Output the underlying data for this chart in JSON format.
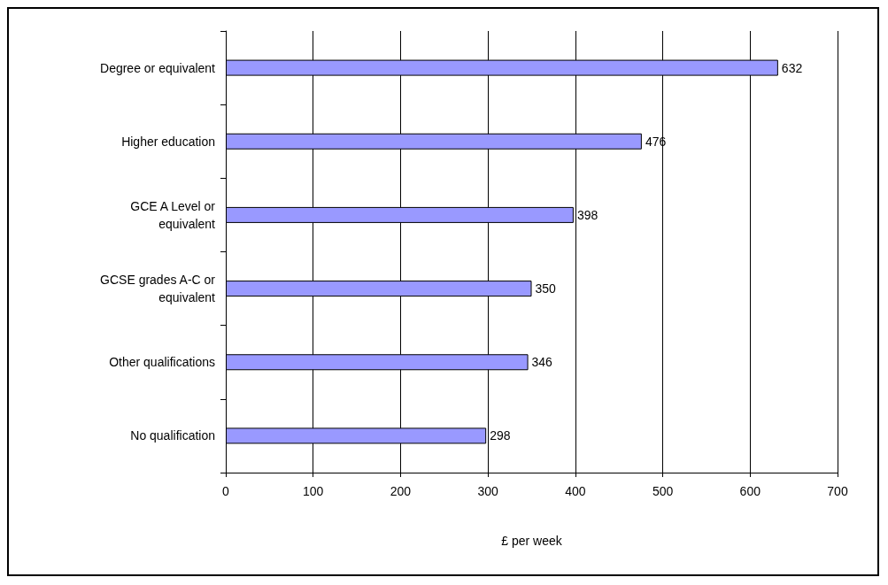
{
  "chart_data": {
    "type": "bar",
    "orientation": "horizontal",
    "xlabel": "£ per week",
    "categories": [
      "Degree or equivalent",
      "Higher education",
      "GCE A Level or\nequivalent",
      "GCSE grades A-C or\nequivalent",
      "Other qualifications",
      "No qualification"
    ],
    "values": [
      632,
      476,
      398,
      350,
      346,
      298
    ],
    "color": "#9999ff",
    "xlim": [
      0,
      700
    ],
    "xticks": [
      0,
      100,
      200,
      300,
      400,
      500,
      600,
      700
    ],
    "grid": "x",
    "data_labels": true
  }
}
